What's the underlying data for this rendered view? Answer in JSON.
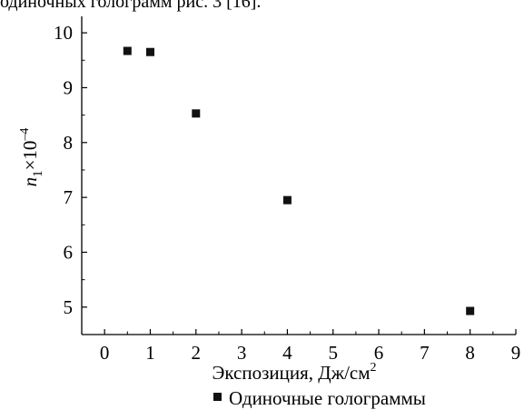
{
  "header_text": "одиночных голограмм рис. 3 [16].",
  "chart_data": {
    "type": "scatter",
    "xlabel": "Экспозиция, Дж/см",
    "xlabel_sup": "2",
    "ylabel": "n",
    "ylabel_sub": "1",
    "ylabel_rest": "×10",
    "ylabel_sup": "–4",
    "xlim": [
      -0.5,
      9
    ],
    "ylim": [
      4.5,
      10.3
    ],
    "xticks": [
      0,
      1,
      2,
      3,
      4,
      5,
      6,
      7,
      8,
      9
    ],
    "yticks": [
      5,
      6,
      7,
      8,
      9,
      10
    ],
    "grid": false,
    "legend_position": "bottom-center",
    "marker_color": "#111111",
    "series": [
      {
        "name": "Одиночные голограммы",
        "points": [
          {
            "x": 0.5,
            "y": 9.67
          },
          {
            "x": 1,
            "y": 9.65
          },
          {
            "x": 2,
            "y": 8.53
          },
          {
            "x": 4,
            "y": 6.95
          },
          {
            "x": 8,
            "y": 4.93
          }
        ]
      }
    ]
  }
}
